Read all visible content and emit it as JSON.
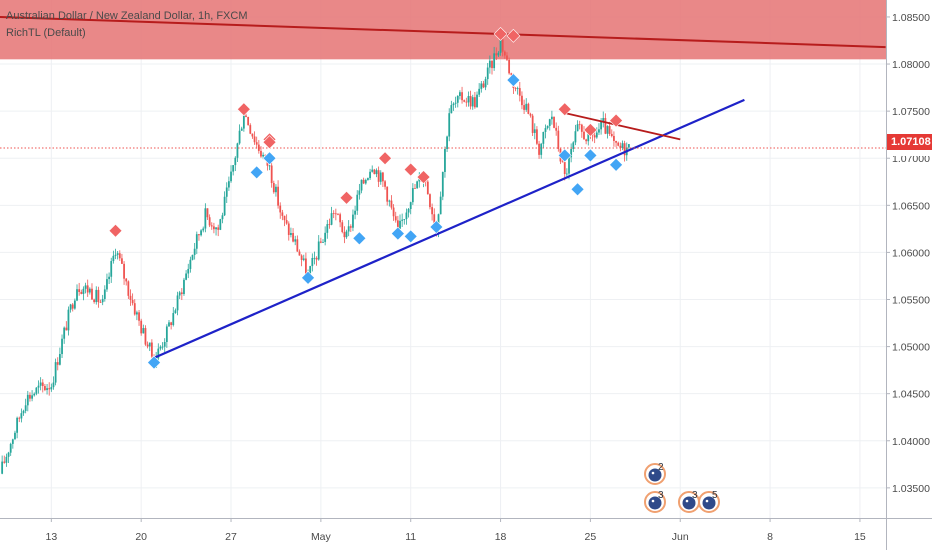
{
  "legend": {
    "symbol_title": "Australian Dollar / New Zealand Dollar, 1h, FXCM",
    "indicator": "RichTL (Default)"
  },
  "last_price": "1.07108",
  "colors": {
    "up": "#26a69a",
    "down": "#ef5350",
    "resistance_zone": "#e57373",
    "resistance_line": "#b71c1c",
    "trendline": "#1e22c8",
    "marker_high": "#f06464",
    "marker_low": "#42a5f5",
    "price_label": "#e53935"
  },
  "chart_data": {
    "type": "candlestick",
    "x_tick_labels": [
      "13",
      "20",
      "27",
      "May",
      "11",
      "18",
      "25",
      "Jun",
      "8",
      "15"
    ],
    "y_tick_labels": [
      "1.08500",
      "1.08000",
      "1.07500",
      "1.07000",
      "1.06500",
      "1.06000",
      "1.05500",
      "1.05000",
      "1.04500",
      "1.04000",
      "1.03500"
    ],
    "ylim": [
      1.0318,
      1.0868
    ],
    "xlim": [
      "2020-04-09",
      "2020-06-17"
    ],
    "close_path": [
      [
        "2020-04-09",
        1.0365
      ],
      [
        "2020-04-10",
        1.0405
      ],
      [
        "2020-04-11",
        1.0445
      ],
      [
        "2020-04-12",
        1.0455
      ],
      [
        "2020-04-13",
        1.046
      ],
      [
        "2020-04-14",
        1.0515
      ],
      [
        "2020-04-15",
        1.0565
      ],
      [
        "2020-04-16",
        1.056
      ],
      [
        "2020-04-17",
        1.0545
      ],
      [
        "2020-04-18",
        1.0605
      ],
      [
        "2020-04-19",
        1.056
      ],
      [
        "2020-04-20",
        1.052
      ],
      [
        "2020-04-21",
        1.0485
      ],
      [
        "2020-04-22",
        1.0515
      ],
      [
        "2020-04-23",
        1.0555
      ],
      [
        "2020-04-24",
        1.06
      ],
      [
        "2020-04-25",
        1.064
      ],
      [
        "2020-04-26",
        1.0625
      ],
      [
        "2020-04-27",
        1.068
      ],
      [
        "2020-04-28",
        1.075
      ],
      [
        "2020-04-29",
        1.0715
      ],
      [
        "2020-04-30",
        1.069
      ],
      [
        "2020-05-01",
        1.0635
      ],
      [
        "2020-05-02",
        1.061
      ],
      [
        "2020-05-03",
        1.0575
      ],
      [
        "2020-05-04",
        1.061
      ],
      [
        "2020-05-05",
        1.0645
      ],
      [
        "2020-05-06",
        1.0615
      ],
      [
        "2020-05-07",
        1.0665
      ],
      [
        "2020-05-08",
        1.0695
      ],
      [
        "2020-05-09",
        1.067
      ],
      [
        "2020-05-10",
        1.062
      ],
      [
        "2020-05-11",
        1.066
      ],
      [
        "2020-05-12",
        1.0685
      ],
      [
        "2020-05-13",
        1.0625
      ],
      [
        "2020-05-14",
        1.075
      ],
      [
        "2020-05-15",
        1.0765
      ],
      [
        "2020-05-16",
        1.076
      ],
      [
        "2020-05-17",
        1.079
      ],
      [
        "2020-05-18",
        1.0825
      ],
      [
        "2020-05-19",
        1.078
      ],
      [
        "2020-05-20",
        1.0755
      ],
      [
        "2020-05-21",
        1.071
      ],
      [
        "2020-05-22",
        1.0745
      ],
      [
        "2020-05-23",
        1.068
      ],
      [
        "2020-05-24",
        1.073
      ],
      [
        "2020-05-25",
        1.072
      ],
      [
        "2020-05-26",
        1.0735
      ],
      [
        "2020-05-27",
        1.071
      ],
      [
        "2020-05-28",
        1.0711
      ]
    ],
    "resistance_zone": [
      1.0805,
      1.0868
    ],
    "resistance_line": [
      [
        "2020-04-09",
        1.085
      ],
      [
        "2020-06-17",
        1.0818
      ]
    ],
    "support_trendline": [
      [
        "2020-04-21",
        1.0488
      ],
      [
        "2020-06-06",
        1.0762
      ]
    ],
    "short_resistance_line": [
      [
        "2020-05-23",
        1.0748
      ],
      [
        "2020-06-01",
        1.072
      ]
    ],
    "high_markers": [
      [
        "2020-04-18",
        1.0623
      ],
      [
        "2020-04-28",
        1.0752
      ],
      [
        "2020-04-30",
        1.072
      ],
      [
        "2020-04-30",
        1.0717
      ],
      [
        "2020-05-06",
        1.0658
      ],
      [
        "2020-05-09",
        1.07
      ],
      [
        "2020-05-11",
        1.0688
      ],
      [
        "2020-05-12",
        1.068
      ],
      [
        "2020-05-18",
        1.0832
      ],
      [
        "2020-05-19",
        1.083
      ],
      [
        "2020-05-23",
        1.0752
      ],
      [
        "2020-05-25",
        1.073
      ],
      [
        "2020-05-27",
        1.074
      ]
    ],
    "low_markers": [
      [
        "2020-04-21",
        1.0483
      ],
      [
        "2020-04-29",
        1.0685
      ],
      [
        "2020-04-30",
        1.07
      ],
      [
        "2020-05-03",
        1.0573
      ],
      [
        "2020-05-07",
        1.0615
      ],
      [
        "2020-05-10",
        1.062
      ],
      [
        "2020-05-11",
        1.0617
      ],
      [
        "2020-05-13",
        1.0627
      ],
      [
        "2020-05-19",
        1.0783
      ],
      [
        "2020-05-23",
        1.0703
      ],
      [
        "2020-05-24",
        1.0667
      ],
      [
        "2020-05-25",
        1.0703
      ],
      [
        "2020-05-27",
        1.0693
      ]
    ],
    "event_badges": [
      {
        "label": "2",
        "date": "2020-05-29"
      },
      {
        "label": "3",
        "date": "2020-05-29"
      },
      {
        "label": "3",
        "date": "2020-05-31"
      },
      {
        "label": "5",
        "date": "2020-06-02"
      }
    ]
  }
}
